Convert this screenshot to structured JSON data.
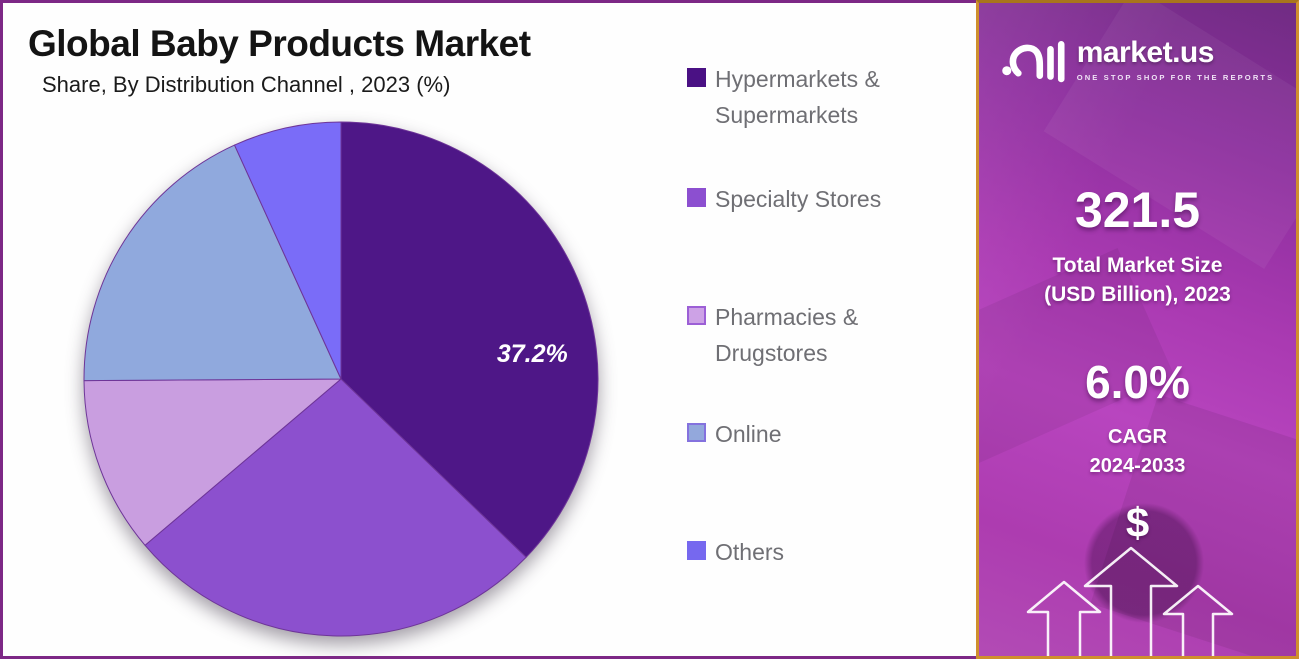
{
  "header": {
    "title": "Global Baby Products Market",
    "subtitle": "Share, By Distribution Channel , 2023 (%)"
  },
  "chart_data": {
    "type": "pie",
    "title": "Global Baby Products Market Share, By Distribution Channel, 2023 (%)",
    "unit": "%",
    "start_angle_deg_from_top": 0,
    "direction": "clockwise",
    "slices": [
      {
        "label": "Hypermarkets & Supermarkets",
        "value": 37.2,
        "color": "#4E1787",
        "data_label": "37.2%"
      },
      {
        "label": "Specialty Stores",
        "value": 26.6,
        "color": "#8C50CE",
        "data_label": ""
      },
      {
        "label": "Pharmacies & Drugstores",
        "value": 11.1,
        "color": "#C99EE0",
        "data_label": ""
      },
      {
        "label": "Online",
        "value": 18.3,
        "color": "#90A9DD",
        "data_label": ""
      },
      {
        "label": "Others",
        "value": 6.8,
        "color": "#7A6CF8",
        "data_label": ""
      }
    ],
    "notes": "Only the 37.2% slice is labeled in the figure; remaining values estimated from arc angles.",
    "legend_position": "right"
  },
  "legend": {
    "items": [
      {
        "label": "Hypermarkets & Supermarkets",
        "color": "#4A1184",
        "border": "#4A1184"
      },
      {
        "label": "Specialty Stores",
        "color": "#8C4FD0",
        "border": "#8C4FD0"
      },
      {
        "label": "Pharmacies & Drugstores",
        "color": "#CDA2E6",
        "border": "#9C5FD6"
      },
      {
        "label": "Online",
        "color": "#93A8DC",
        "border": "#8472DE"
      },
      {
        "label": "Others",
        "color": "#7668EF",
        "border": "#7668EF"
      }
    ]
  },
  "sidebar": {
    "logo": {
      "brand": "market.us",
      "tagline": "ONE STOP SHOP FOR THE REPORTS"
    },
    "market_size": {
      "value": "321.5",
      "line1": "Total Market Size",
      "line2": "(USD Billion), 2023"
    },
    "cagr": {
      "value": "6.0%",
      "line1": "CAGR",
      "line2": "2024-2033"
    },
    "dollar": "$"
  },
  "palette": {
    "panel_border": "#7D2886",
    "gold_border": "#CF8F2E",
    "sidebar_purple": "#A936B3",
    "title_color": "#141414",
    "legend_text": "#6F6F74",
    "pie_stroke": "#6E3598"
  }
}
